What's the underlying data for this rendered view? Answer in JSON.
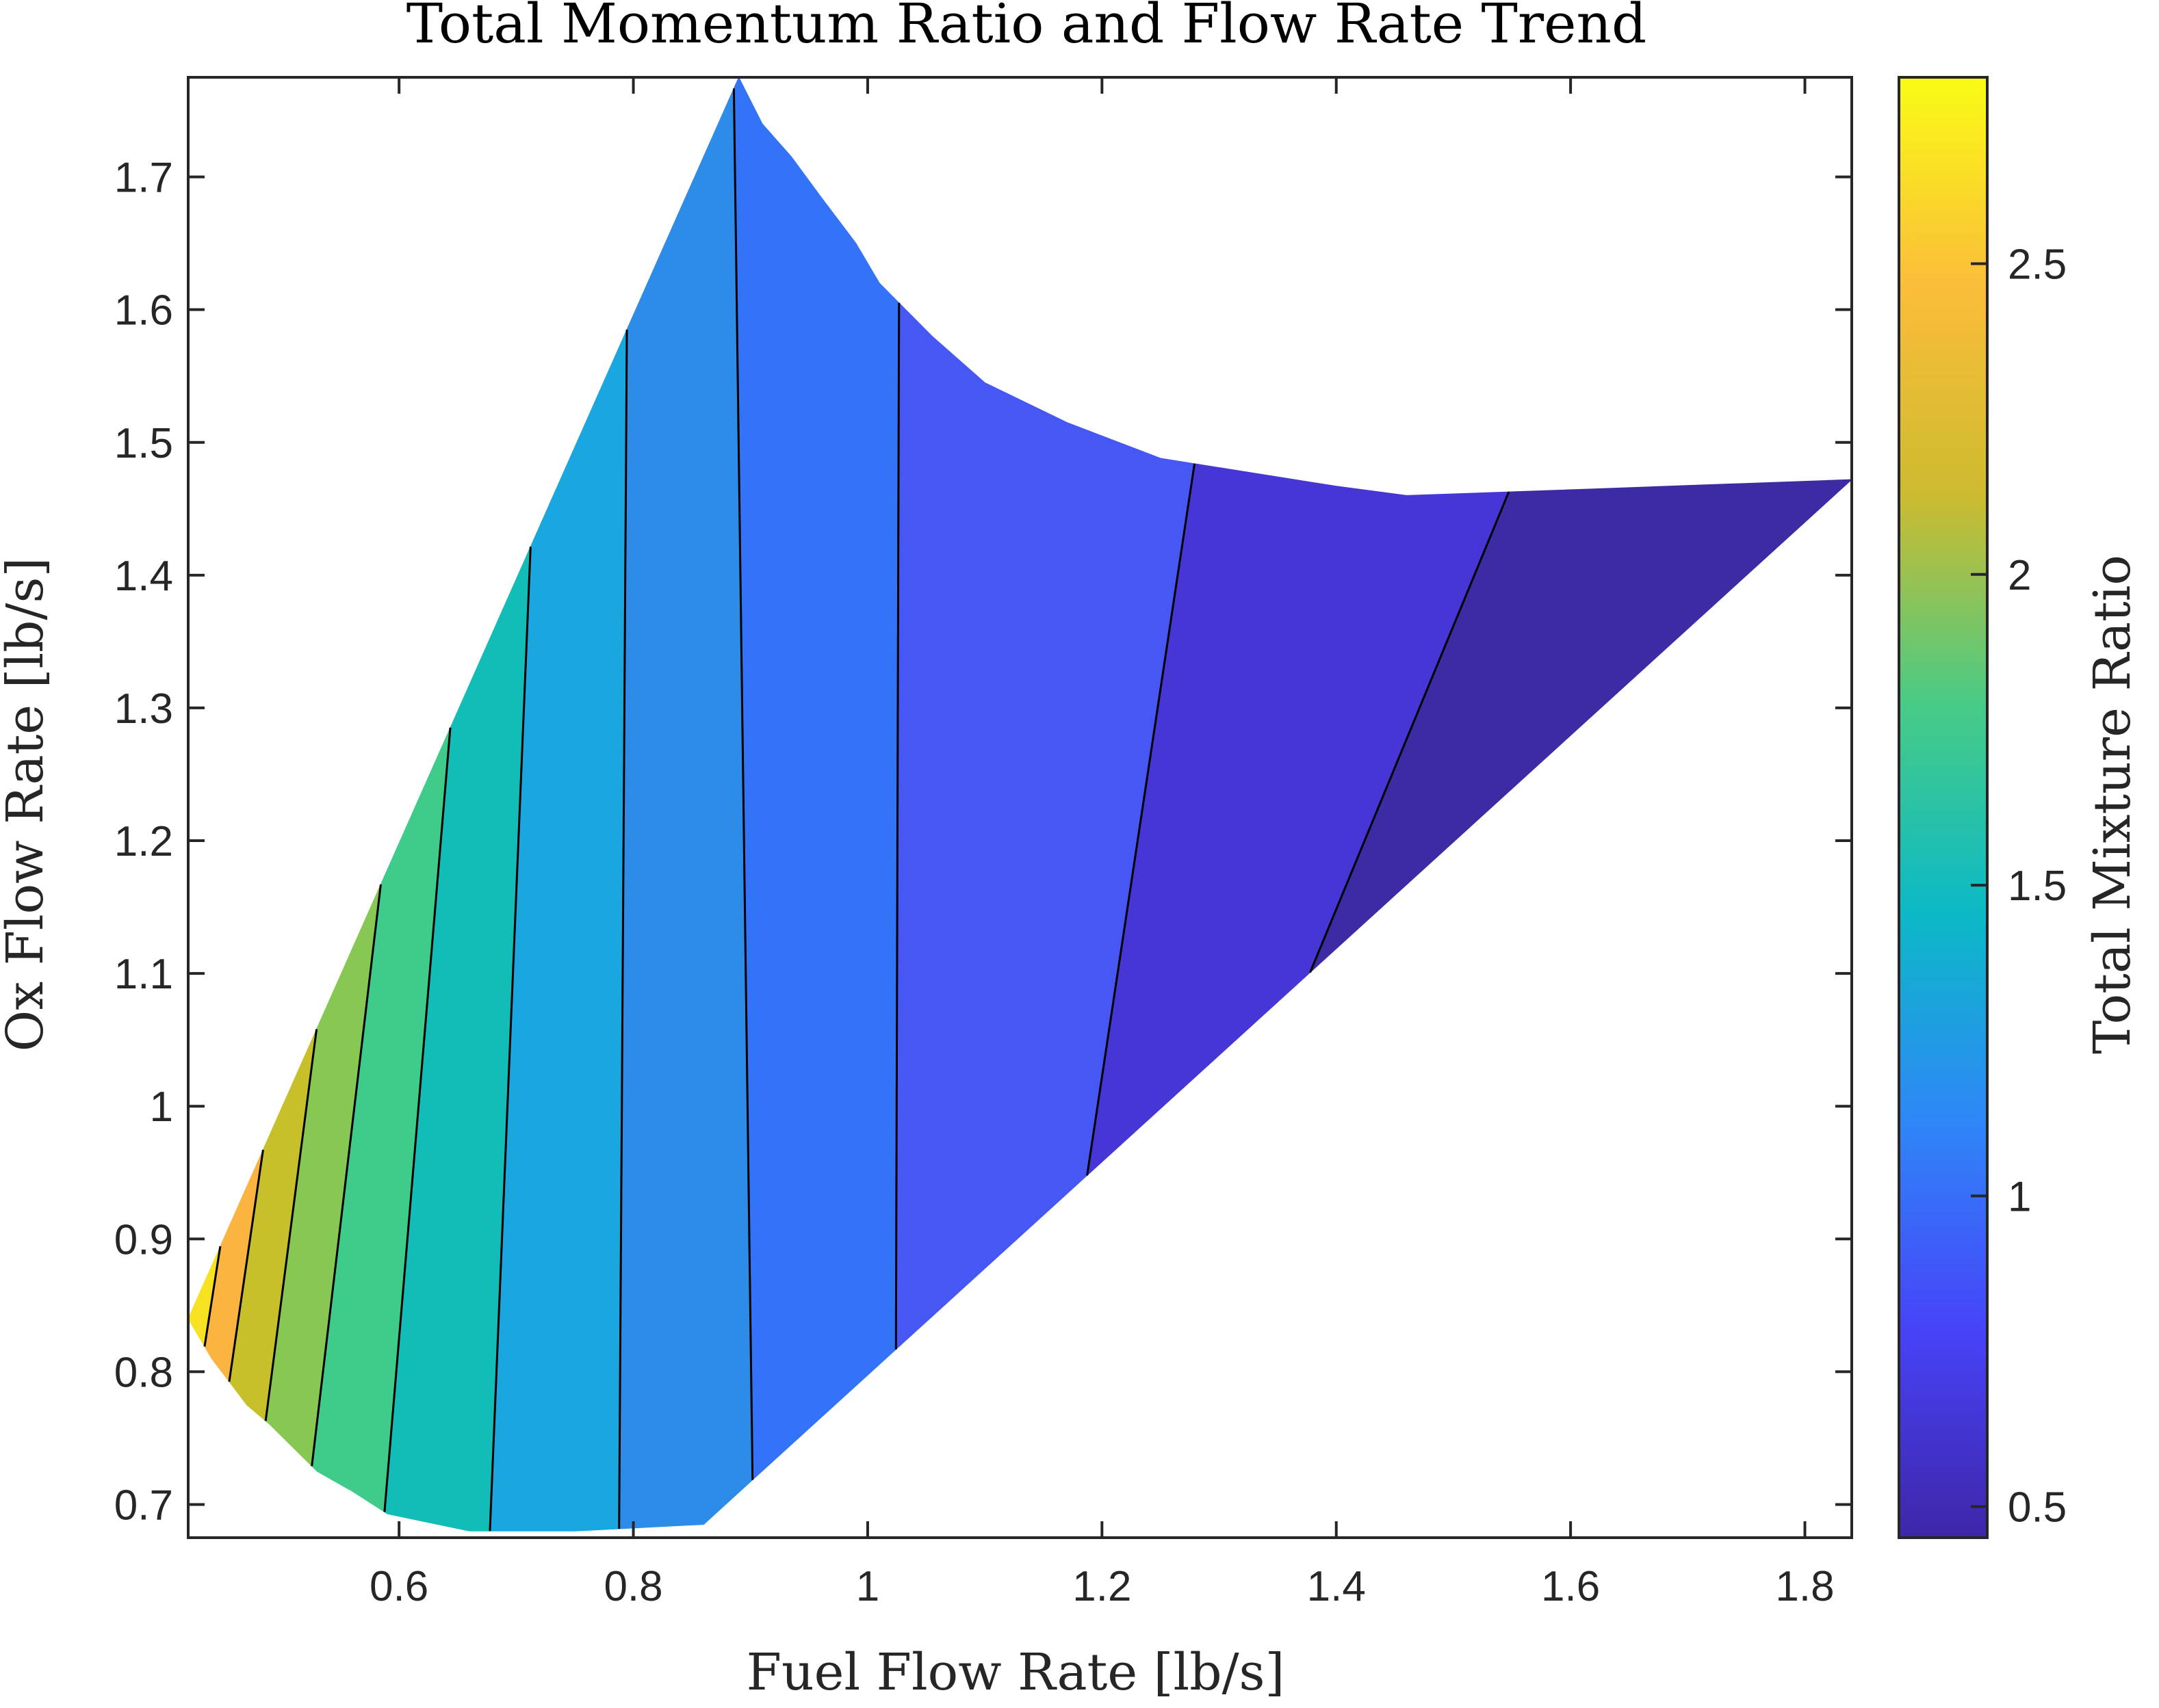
{
  "chart_data": {
    "type": "contourf",
    "title": "Total Momentum Ratio and Flow Rate Trend",
    "xlabel": "Fuel Flow Rate [lb/s]",
    "ylabel": "Ox Flow Rate [lb/s]",
    "xlim": [
      0.42,
      1.84
    ],
    "ylim": [
      0.675,
      1.775
    ],
    "xticks": [
      0.6,
      0.8,
      1,
      1.2,
      1.4,
      1.6,
      1.8
    ],
    "xtick_labels": [
      "0.6",
      "0.8",
      "1",
      "1.2",
      "1.4",
      "1.6",
      "1.8"
    ],
    "yticks": [
      0.7,
      0.8,
      0.9,
      1,
      1.1,
      1.2,
      1.3,
      1.4,
      1.5,
      1.6,
      1.7
    ],
    "ytick_labels": [
      "0.7",
      "0.8",
      "0.9",
      "1",
      "1.1",
      "1.2",
      "1.3",
      "1.4",
      "1.5",
      "1.6",
      "1.7"
    ],
    "colorbar": {
      "label": "Total Mixture Ratio",
      "limits": [
        0.45,
        2.8
      ],
      "ticks": [
        0.5,
        1,
        1.5,
        2,
        2.5
      ],
      "tick_labels": [
        "0.5",
        "1",
        "1.5",
        "2",
        "2.5"
      ],
      "colormap": "parula",
      "stops": [
        "#3e26a8",
        "#4743f8",
        "#2e87f7",
        "#0cb9c6",
        "#48cb86",
        "#cdbb2f",
        "#fbbd3a",
        "#f9fb15"
      ]
    },
    "region": {
      "upper_boundary": [
        [
          0.42,
          0.84
        ],
        [
          0.89,
          1.775
        ],
        [
          0.91,
          1.74
        ],
        [
          0.935,
          1.715
        ],
        [
          0.96,
          1.685
        ],
        [
          0.99,
          1.65
        ],
        [
          1.01,
          1.62
        ],
        [
          1.055,
          1.58
        ],
        [
          1.1,
          1.545
        ],
        [
          1.17,
          1.515
        ],
        [
          1.25,
          1.488
        ],
        [
          1.4,
          1.467
        ],
        [
          1.46,
          1.46
        ],
        [
          1.62,
          1.465
        ],
        [
          1.84,
          1.472
        ]
      ],
      "lower_boundary": [
        [
          0.42,
          0.84
        ],
        [
          0.44,
          0.81
        ],
        [
          0.47,
          0.775
        ],
        [
          0.49,
          0.76
        ],
        [
          0.53,
          0.725
        ],
        [
          0.56,
          0.71
        ],
        [
          0.59,
          0.693
        ],
        [
          0.66,
          0.68
        ],
        [
          0.75,
          0.68
        ],
        [
          0.86,
          0.685
        ],
        [
          1.84,
          1.472
        ]
      ]
    },
    "contour_levels": [
      {
        "level": 2.7,
        "color": "#f7e221"
      },
      {
        "level": 2.55,
        "color": "#fbb43f"
      },
      {
        "level": 2.35,
        "color": "#c7c02b"
      },
      {
        "level": 2.15,
        "color": "#86c852"
      },
      {
        "level": 1.95,
        "color": "#3fcb8a"
      },
      {
        "level": 1.75,
        "color": "#13bdb7"
      },
      {
        "level": 1.55,
        "color": "#1aa7e0"
      },
      {
        "level": 1.35,
        "color": "#2c8ce7"
      },
      {
        "level": 1.15,
        "color": "#3273f8"
      },
      {
        "level": 0.95,
        "color": "#4657f4"
      },
      {
        "level": 0.75,
        "color": "#4536d5"
      },
      {
        "level": 0.55,
        "color": "#3c2ba3"
      }
    ]
  }
}
